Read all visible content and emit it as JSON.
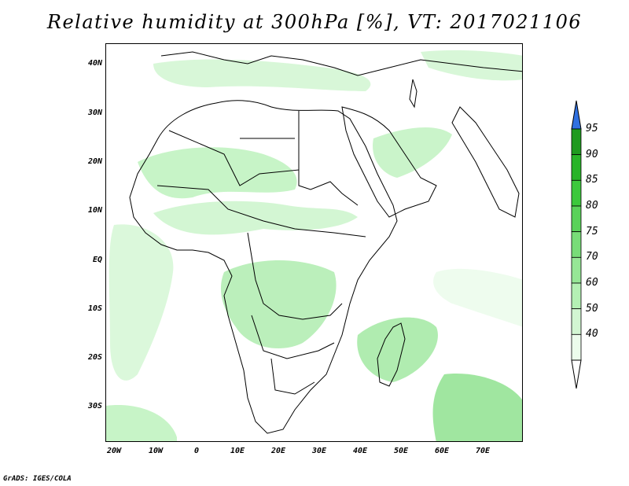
{
  "title": "Relative humidity at 300hPa [%], VT: 2017021106",
  "y_ticks": [
    "40N",
    "30N",
    "20N",
    "10N",
    "EQ",
    "10S",
    "20S",
    "30S"
  ],
  "x_ticks": [
    "20W",
    "10W",
    "0",
    "10E",
    "20E",
    "30E",
    "40E",
    "50E",
    "60E",
    "70E"
  ],
  "colorbar": {
    "levels": [
      "95",
      "90",
      "85",
      "80",
      "75",
      "70",
      "60",
      "50",
      "40"
    ],
    "colors": [
      "#ecfcec",
      "#d2f6d2",
      "#b4f0b4",
      "#96e696",
      "#78dc78",
      "#5ad25a",
      "#3cc83c",
      "#28b428",
      "#1e9a1e"
    ],
    "over_color": "#3070e0",
    "under_color": "#ffffff"
  },
  "credit": "GrADS: IGES/COLA",
  "humid_colors": [
    "#d2f6d2",
    "#b4f0b4",
    "#96e696",
    "#78dc78"
  ]
}
